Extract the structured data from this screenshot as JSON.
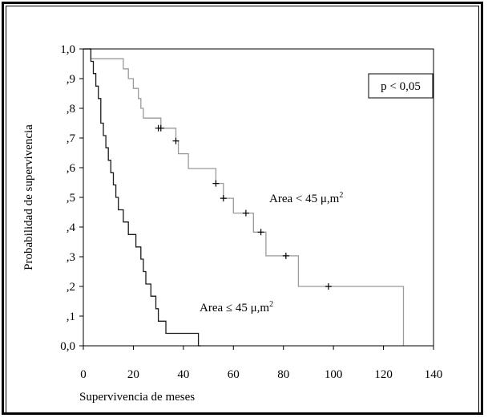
{
  "chart_data": {
    "type": "line",
    "chart_style": "kaplan-meier step plot",
    "xlabel": "Supervivencia de meses",
    "ylabel": "Probabilidad de supervivencia",
    "xlim": [
      0,
      140
    ],
    "ylim": [
      0.0,
      1.0
    ],
    "x_ticks": [
      0,
      20,
      40,
      60,
      80,
      100,
      120,
      140
    ],
    "x_tick_labels": [
      "0",
      "20",
      "40",
      "60",
      "80",
      "100",
      "120",
      "140"
    ],
    "y_ticks": [
      0.0,
      0.1,
      0.2,
      0.3,
      0.4,
      0.5,
      0.6,
      0.7,
      0.8,
      0.9,
      1.0
    ],
    "y_tick_labels": [
      "0,0",
      ",1",
      ",2",
      ",3",
      ",4",
      ",5",
      ",6",
      ",7",
      ",8",
      ",9",
      "1,0"
    ],
    "grid": false,
    "annotation_box": "p < 0,05",
    "series": [
      {
        "label_text": "Area < 45 μ,m",
        "label_sup": "2",
        "color": "#9a9a9a",
        "points": [
          [
            0,
            1.0
          ],
          [
            3,
            1.0
          ],
          [
            3,
            0.967
          ],
          [
            16,
            0.967
          ],
          [
            16,
            0.933
          ],
          [
            18,
            0.933
          ],
          [
            18,
            0.9
          ],
          [
            20,
            0.9
          ],
          [
            20,
            0.867
          ],
          [
            22,
            0.867
          ],
          [
            22,
            0.833
          ],
          [
            23,
            0.833
          ],
          [
            23,
            0.8
          ],
          [
            24,
            0.8
          ],
          [
            24,
            0.767
          ],
          [
            31,
            0.767
          ],
          [
            31,
            0.733
          ],
          [
            37,
            0.733
          ],
          [
            37,
            0.69
          ],
          [
            38,
            0.69
          ],
          [
            38,
            0.647
          ],
          [
            42,
            0.647
          ],
          [
            42,
            0.597
          ],
          [
            53,
            0.597
          ],
          [
            53,
            0.547
          ],
          [
            56,
            0.547
          ],
          [
            56,
            0.497
          ],
          [
            60,
            0.497
          ],
          [
            60,
            0.447
          ],
          [
            68,
            0.447
          ],
          [
            68,
            0.383
          ],
          [
            73,
            0.383
          ],
          [
            73,
            0.303
          ],
          [
            86,
            0.303
          ],
          [
            86,
            0.2
          ],
          [
            128,
            0.2
          ],
          [
            128,
            0.0
          ]
        ],
        "censored": [
          [
            30,
            0.733
          ],
          [
            31,
            0.733
          ],
          [
            37,
            0.69
          ],
          [
            53,
            0.547
          ],
          [
            56,
            0.497
          ],
          [
            65,
            0.447
          ],
          [
            71,
            0.383
          ],
          [
            81,
            0.303
          ],
          [
            98,
            0.2
          ]
        ]
      },
      {
        "label_text": "Area ≤ 45 μ,m",
        "label_sup": "2",
        "color": "#1a1a1a",
        "points": [
          [
            0,
            1.0
          ],
          [
            3,
            1.0
          ],
          [
            3,
            0.958
          ],
          [
            4,
            0.958
          ],
          [
            4,
            0.917
          ],
          [
            5,
            0.917
          ],
          [
            5,
            0.875
          ],
          [
            6,
            0.875
          ],
          [
            6,
            0.833
          ],
          [
            7,
            0.833
          ],
          [
            7,
            0.75
          ],
          [
            8,
            0.75
          ],
          [
            8,
            0.708
          ],
          [
            9,
            0.708
          ],
          [
            9,
            0.667
          ],
          [
            10,
            0.667
          ],
          [
            10,
            0.625
          ],
          [
            11,
            0.625
          ],
          [
            11,
            0.583
          ],
          [
            12,
            0.583
          ],
          [
            12,
            0.542
          ],
          [
            13,
            0.542
          ],
          [
            13,
            0.5
          ],
          [
            14,
            0.5
          ],
          [
            14,
            0.458
          ],
          [
            16,
            0.458
          ],
          [
            16,
            0.417
          ],
          [
            18,
            0.417
          ],
          [
            18,
            0.375
          ],
          [
            21,
            0.375
          ],
          [
            21,
            0.333
          ],
          [
            23,
            0.333
          ],
          [
            23,
            0.292
          ],
          [
            24,
            0.292
          ],
          [
            24,
            0.25
          ],
          [
            25,
            0.25
          ],
          [
            25,
            0.208
          ],
          [
            27,
            0.208
          ],
          [
            27,
            0.167
          ],
          [
            29,
            0.167
          ],
          [
            29,
            0.125
          ],
          [
            30,
            0.125
          ],
          [
            30,
            0.083
          ],
          [
            33,
            0.083
          ],
          [
            33,
            0.042
          ],
          [
            46,
            0.042
          ],
          [
            46,
            0.0
          ],
          [
            47,
            0.0
          ]
        ],
        "censored": []
      }
    ]
  }
}
